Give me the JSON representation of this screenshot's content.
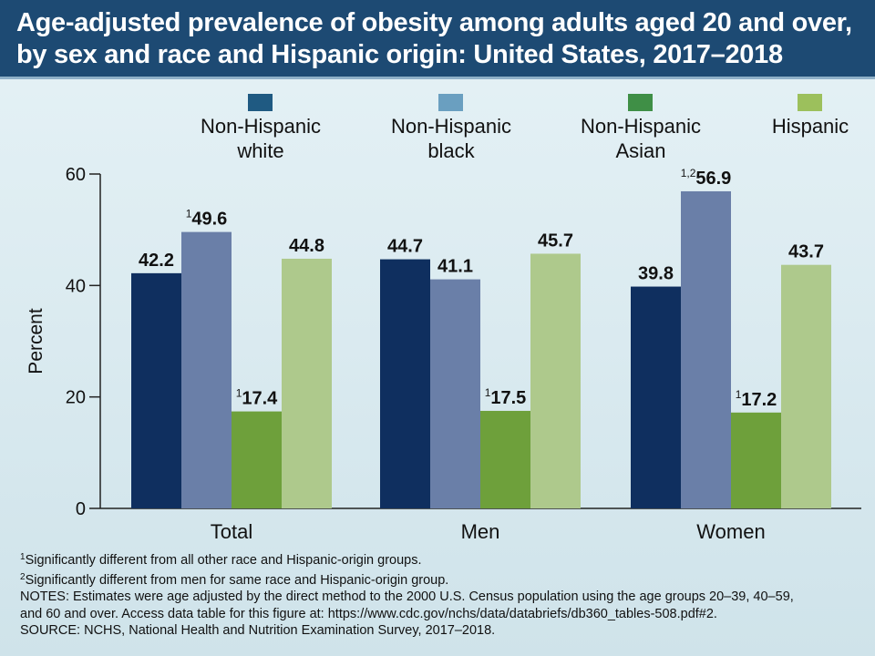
{
  "title": {
    "line1": "Age-adjusted prevalence of obesity among adults aged 20 and over,",
    "line2": "by sex and race and Hispanic origin: United States, 2017–2018"
  },
  "colors": {
    "header_bg": "#1d4a73",
    "legend_swatches": [
      "#1f5a82",
      "#6a9fc0",
      "#3f8f46",
      "#9cc05c"
    ],
    "bars": [
      "#0f2f5f",
      "#6a7fa8",
      "#6ea03b",
      "#aec98c"
    ]
  },
  "chart_data": {
    "type": "bar",
    "categories": [
      "Total",
      "Men",
      "Women"
    ],
    "series": [
      {
        "name": "Non-Hispanic white",
        "name_lines": [
          "Non-Hispanic",
          "white"
        ],
        "values": [
          42.2,
          44.7,
          39.8
        ],
        "labels": [
          "42.2",
          "44.7",
          "39.8"
        ],
        "sup": [
          "",
          "",
          ""
        ]
      },
      {
        "name": "Non-Hispanic black",
        "name_lines": [
          "Non-Hispanic",
          "black"
        ],
        "values": [
          49.6,
          41.1,
          56.9
        ],
        "labels": [
          "49.6",
          "41.1",
          "56.9"
        ],
        "sup": [
          "1",
          "",
          "1,2"
        ]
      },
      {
        "name": "Non-Hispanic Asian",
        "name_lines": [
          "Non-Hispanic",
          "Asian"
        ],
        "values": [
          17.4,
          17.5,
          17.2
        ],
        "labels": [
          "17.4",
          "17.5",
          "17.2"
        ],
        "sup": [
          "1",
          "1",
          "1"
        ]
      },
      {
        "name": "Hispanic",
        "name_lines": [
          "Hispanic"
        ],
        "values": [
          44.8,
          45.7,
          43.7
        ],
        "labels": [
          "44.8",
          "45.7",
          "43.7"
        ],
        "sup": [
          "",
          "",
          ""
        ]
      }
    ],
    "ylabel": "Percent",
    "xlabel": "",
    "ylim": [
      0,
      60
    ],
    "yticks": [
      0,
      20,
      40,
      60
    ],
    "grid": false,
    "legend_position": "top"
  },
  "footnotes": [
    {
      "sup": "1",
      "text": "Significantly different from all other race and Hispanic-origin groups."
    },
    {
      "sup": "2",
      "text": "Significantly different from men for same race and Hispanic-origin group."
    },
    {
      "sup": "",
      "text": "NOTES: Estimates were age adjusted by the direct method to the 2000 U.S. Census population using the age groups 20–39, 40–59,"
    },
    {
      "sup": "",
      "text": "and 60 and over. Access data table for this figure at: https://www.cdc.gov/nchs/data/databriefs/db360_tables-508.pdf#2."
    },
    {
      "sup": "",
      "text": "SOURCE: NCHS, National Health and Nutrition Examination Survey, 2017–2018."
    }
  ]
}
